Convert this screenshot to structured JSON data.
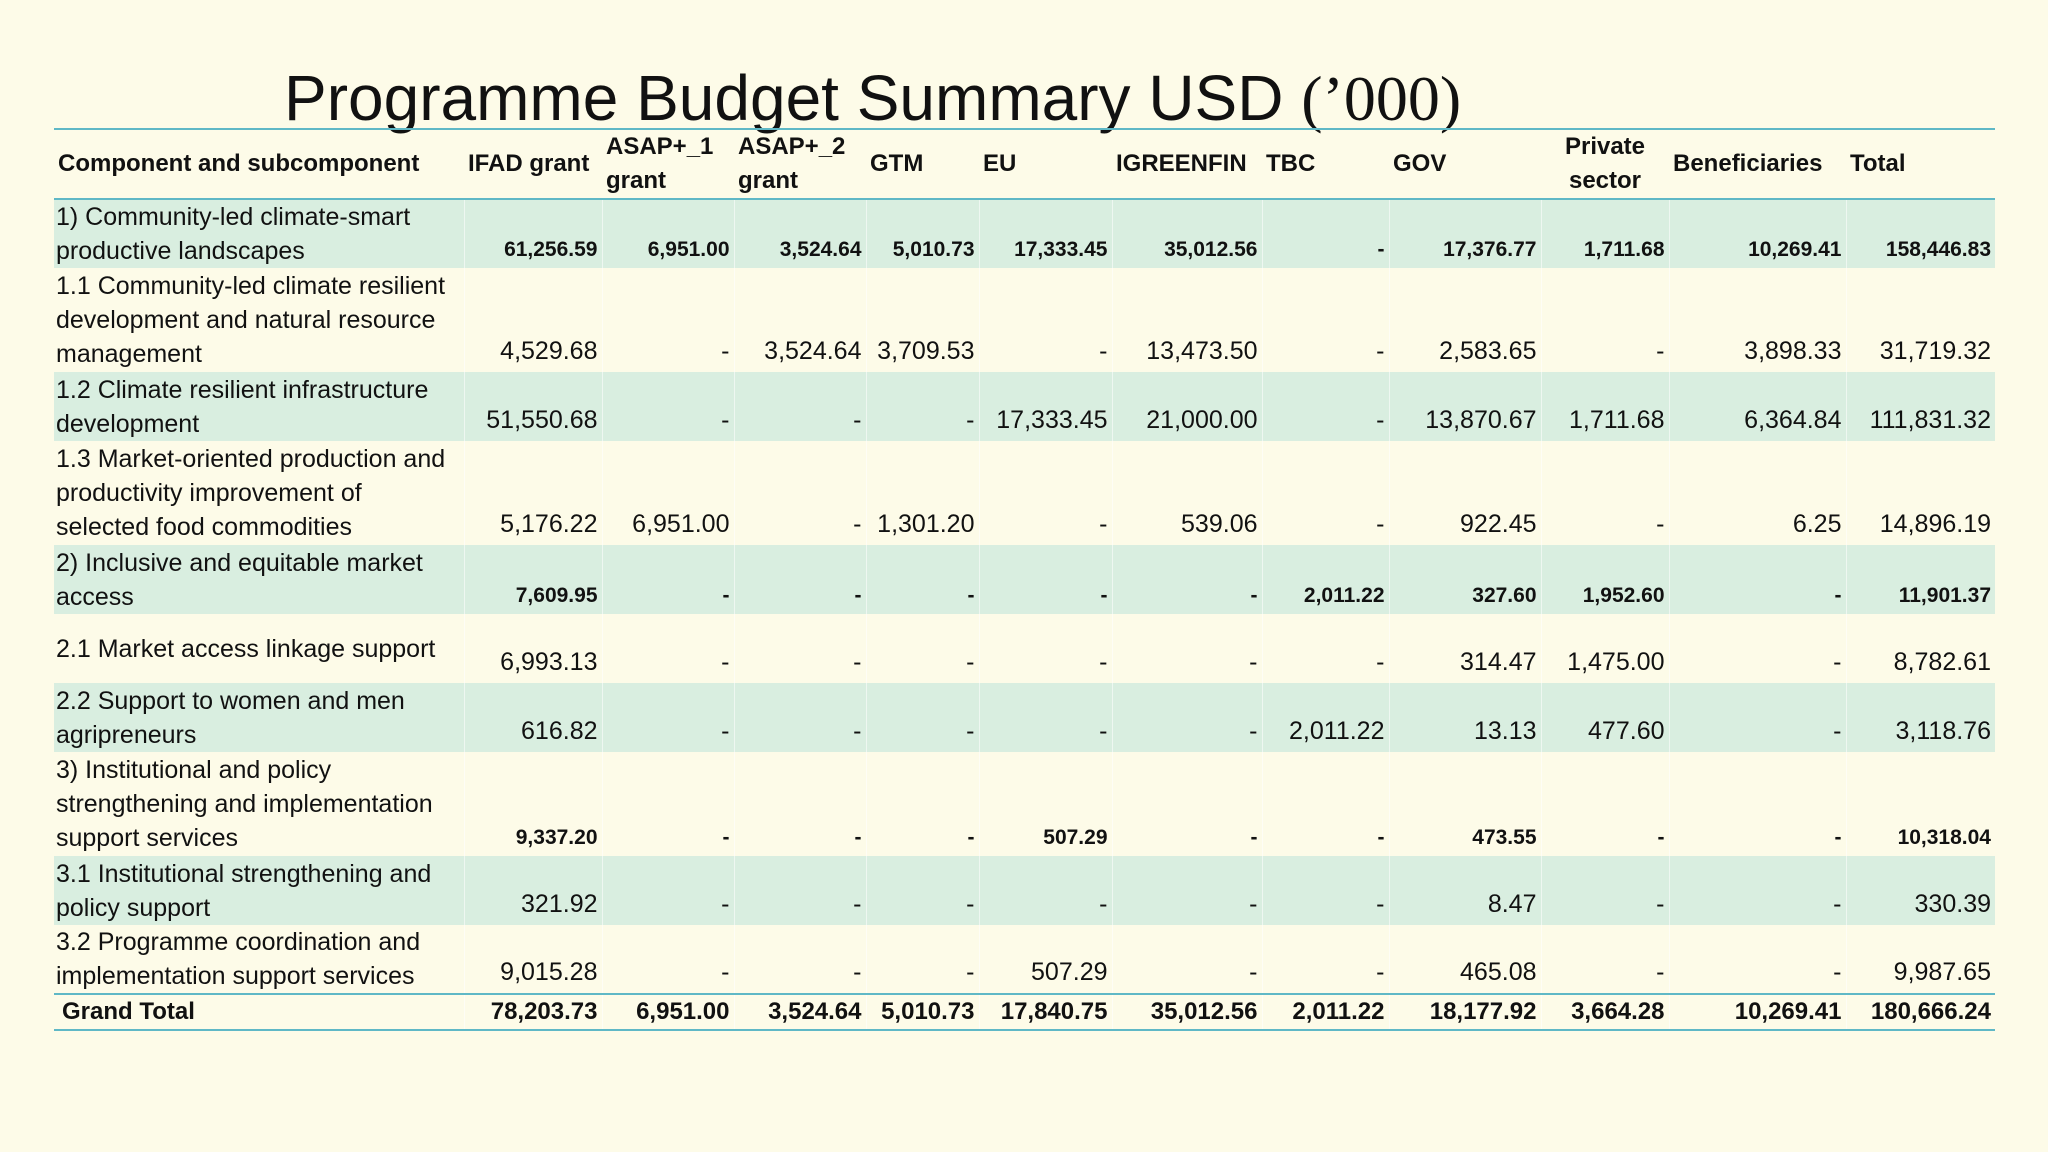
{
  "title": {
    "main": "Programme Budget Summary USD ",
    "unit": "(’000)"
  },
  "columns": [
    "Component and subcomponent",
    "IFAD grant",
    "ASAP+_1 grant",
    "ASAP+_2 grant",
    "GTM",
    "EU",
    "IGREENFIN",
    "TBC",
    "GOV",
    "Private sector",
    "Beneficiaries",
    "Total"
  ],
  "rows": [
    {
      "label": "1) Community-led climate-smart productive landscapes",
      "values": [
        "61,256.59",
        "6,951.00",
        "3,524.64",
        "5,010.73",
        "17,333.45",
        "35,012.56",
        "-",
        "17,376.77",
        "1,711.68",
        "10,269.41",
        "158,446.83"
      ]
    },
    {
      "label": "1.1 Community-led climate resilient development and natural resource management",
      "values": [
        "4,529.68",
        "-",
        "3,524.64",
        "3,709.53",
        "-",
        "13,473.50",
        "-",
        "2,583.65",
        "-",
        "3,898.33",
        "31,719.32"
      ]
    },
    {
      "label": "1.2 Climate resilient infrastructure development",
      "values": [
        "51,550.68",
        "-",
        "-",
        "-",
        "17,333.45",
        "21,000.00",
        "-",
        "13,870.67",
        "1,711.68",
        "6,364.84",
        "111,831.32"
      ]
    },
    {
      "label": "1.3 Market-oriented production and productivity improvement of selected food commodities",
      "values": [
        "5,176.22",
        "6,951.00",
        "-",
        "1,301.20",
        "-",
        "539.06",
        "-",
        "922.45",
        "-",
        "6.25",
        "14,896.19"
      ]
    },
    {
      "label": "2) Inclusive and equitable market access",
      "values": [
        "7,609.95",
        "-",
        "-",
        "-",
        "-",
        "-",
        "2,011.22",
        "327.60",
        "1,952.60",
        "-",
        "11,901.37"
      ]
    },
    {
      "label": "2.1 Market access linkage support",
      "values": [
        "6,993.13",
        "-",
        "-",
        "-",
        "-",
        "-",
        "-",
        "314.47",
        "1,475.00",
        "-",
        "8,782.61"
      ]
    },
    {
      "label": "2.2 Support to women and men agripreneurs",
      "values": [
        "616.82",
        "-",
        "-",
        "-",
        "-",
        "-",
        "2,011.22",
        "13.13",
        "477.60",
        "-",
        "3,118.76"
      ]
    },
    {
      "label": "3) Institutional and policy strengthening and implementation support services",
      "values": [
        "9,337.20",
        "-",
        "-",
        "-",
        "507.29",
        "-",
        "-",
        "473.55",
        "-",
        "-",
        "10,318.04"
      ]
    },
    {
      "label": "3.1 Institutional strengthening and policy support",
      "values": [
        "321.92",
        "-",
        "-",
        "-",
        "-",
        "-",
        "-",
        "8.47",
        "-",
        "-",
        "330.39"
      ]
    },
    {
      "label": "3.2 Programme coordination and implementation support services",
      "values": [
        "9,015.28",
        "-",
        "-",
        "-",
        "507.29",
        "-",
        "-",
        "465.08",
        "-",
        "-",
        "9,987.65"
      ]
    },
    {
      "label": "Grand Total",
      "values": [
        "78,203.73",
        "6,951.00",
        "3,524.64",
        "5,010.73",
        "17,840.75",
        "35,012.56",
        "2,011.22",
        "18,177.92",
        "3,664.28",
        "10,269.41",
        "180,666.24"
      ]
    }
  ],
  "colors": {
    "background": "#fdfbe8",
    "row_shade": "#d9eee0",
    "rule": "#5fb8c6"
  }
}
